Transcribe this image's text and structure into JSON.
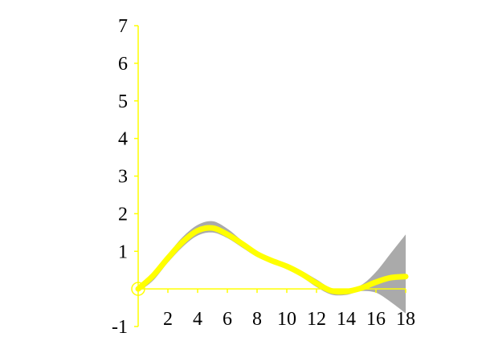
{
  "chart_data": {
    "type": "area",
    "title": "",
    "xlabel": "",
    "ylabel": "",
    "xlim": [
      0,
      18
    ],
    "ylim": [
      -1,
      7
    ],
    "x_ticks": [
      2,
      4,
      6,
      8,
      10,
      12,
      14,
      16,
      18
    ],
    "y_ticks": [
      -1,
      1,
      2,
      3,
      4,
      5,
      6,
      7
    ],
    "x_tick_labels": [
      "2",
      "4",
      "6",
      "8",
      "10",
      "12",
      "14",
      "16",
      "18"
    ],
    "y_tick_labels": [
      "-1",
      "1",
      "2",
      "3",
      "4",
      "5",
      "6",
      "7"
    ],
    "grid": false,
    "series": [
      {
        "x": [
          0,
          1,
          2,
          3,
          4,
          5,
          6,
          7,
          8,
          9,
          10,
          11,
          12,
          13,
          14,
          15,
          16,
          17,
          18
        ],
        "y": [
          0,
          0.35,
          0.82,
          1.25,
          1.55,
          1.62,
          1.45,
          1.2,
          0.93,
          0.75,
          0.6,
          0.4,
          0.15,
          -0.05,
          -0.07,
          0.02,
          0.18,
          0.3,
          0.33
        ],
        "upper": [
          0.08,
          0.45,
          0.92,
          1.38,
          1.7,
          1.8,
          1.6,
          1.28,
          1.0,
          0.82,
          0.67,
          0.48,
          0.25,
          0.02,
          0.0,
          0.1,
          0.45,
          0.95,
          1.45
        ],
        "lower": [
          -0.08,
          0.22,
          0.7,
          1.12,
          1.42,
          1.5,
          1.35,
          1.1,
          0.85,
          0.68,
          0.53,
          0.32,
          0.05,
          -0.15,
          -0.16,
          -0.06,
          -0.1,
          -0.35,
          -0.65
        ]
      }
    ],
    "colors": {
      "axis": "#ffff00",
      "line": "#ffff00",
      "band": "#aaaaaa",
      "text": "#000000"
    }
  }
}
